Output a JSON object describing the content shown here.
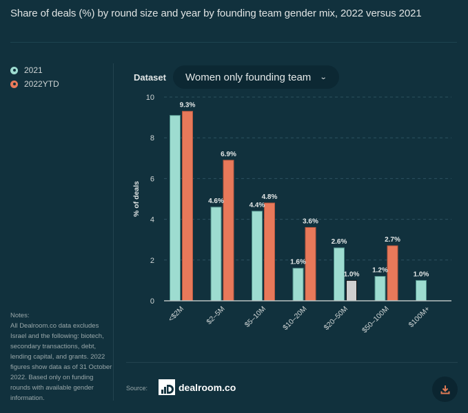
{
  "title": "Share of deals (%) by round size and year by founding team gender mix, 2022 versus 2021",
  "legend": [
    {
      "label": "2021",
      "color": "#9ddcd0"
    },
    {
      "label": "2022YTD",
      "color": "#e8795a"
    }
  ],
  "dataset": {
    "label": "Dataset",
    "selected": "Women only founding team",
    "chevron_icon": "chevron-down-icon"
  },
  "notes": {
    "heading": "Notes:",
    "body": "All Dealroom.co data excludes Israel and the following: biotech, secondary transactions, debt, lending capital, and grants. 2022 figures show data as of 31 October 2022. Based only on funding rounds with available gender information."
  },
  "footer": {
    "source_label": "Source:",
    "brand": "dealroom.co",
    "download_icon": "download-icon"
  },
  "colors": {
    "background": "#11313d",
    "series_2021": "#9ddcd0",
    "series_2022": "#e8795a",
    "highlight": "#cfcfcf"
  },
  "chart_data": {
    "type": "bar",
    "title": "Share of deals (%) by round size and year by founding team gender mix, 2022 versus 2021",
    "xlabel": "",
    "ylabel": "% of deals",
    "ylim": [
      0,
      10
    ],
    "yticks": [
      0,
      2,
      4,
      6,
      8,
      10
    ],
    "grid": true,
    "legend_position": "left",
    "categories": [
      "<$2M",
      "$2–5M",
      "$5–10M",
      "$10–20M",
      "$20–50M",
      "$50–100M",
      "$100M+"
    ],
    "series": [
      {
        "name": "2021",
        "values": [
          9.1,
          4.6,
          4.4,
          1.6,
          2.6,
          1.2,
          1.0
        ],
        "labels": [
          "",
          "4.6%",
          "4.4%",
          "1.6%",
          "2.6%",
          "1.2%",
          "1.0%"
        ]
      },
      {
        "name": "2022YTD",
        "values": [
          9.3,
          6.9,
          4.8,
          3.6,
          1.0,
          2.7,
          null
        ],
        "labels": [
          "9.3%",
          "6.9%",
          "4.8%",
          "3.6%",
          "1.0%",
          "2.7%",
          ""
        ],
        "highlighted_index": 4
      }
    ]
  }
}
